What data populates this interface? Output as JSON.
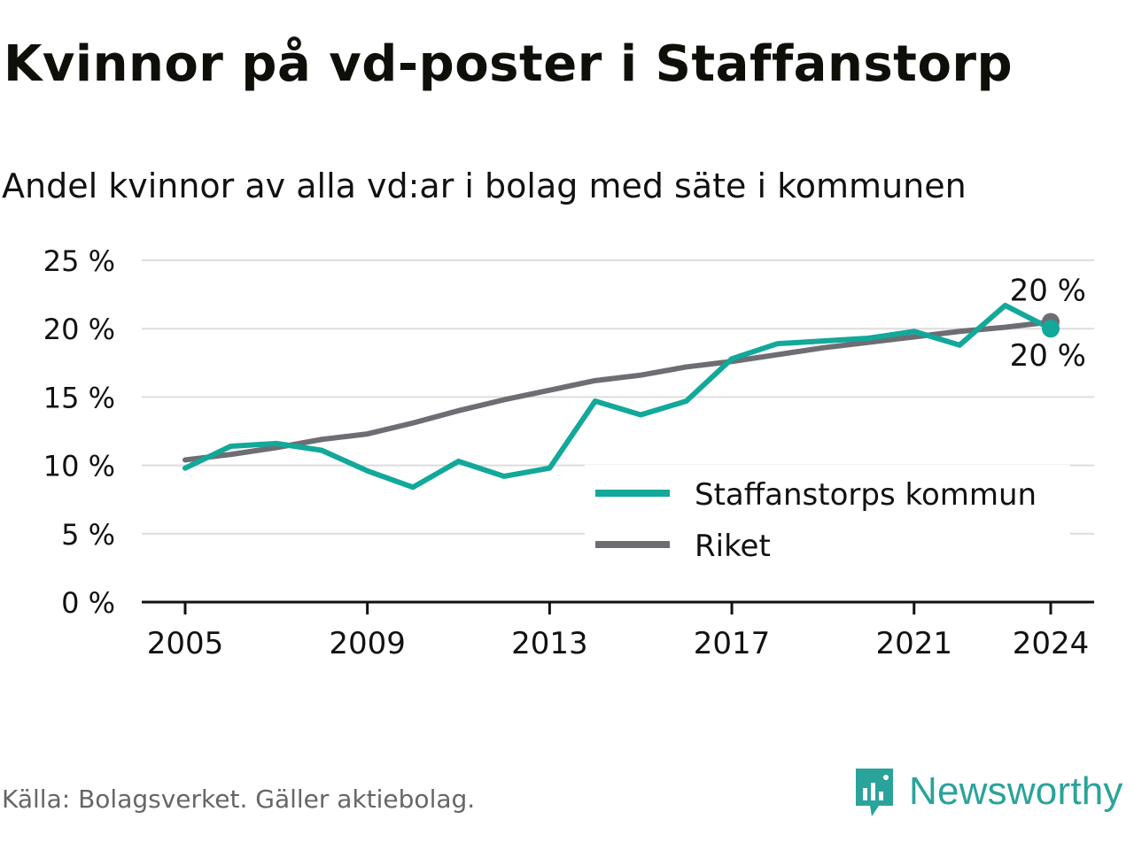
{
  "title": "Kvinnor på vd-poster i Staffanstorp",
  "subtitle": "Andel kvinnor av alla vd:ar i bolag med säte i kommunen",
  "source": "Källa: Bolagsverket. Gäller aktiebolag.",
  "brand": {
    "name": "Newsworthy",
    "icon": "newsworthy-logo-icon"
  },
  "colors": {
    "kommun": "#12a89a",
    "riket": "#6e6d73",
    "grid": "#dddddd",
    "text": "#111111"
  },
  "chart_data": {
    "type": "line",
    "x": [
      2005,
      2006,
      2007,
      2008,
      2009,
      2010,
      2011,
      2012,
      2013,
      2014,
      2015,
      2016,
      2017,
      2018,
      2019,
      2020,
      2021,
      2022,
      2023,
      2024
    ],
    "series": [
      {
        "name": "Staffanstorps kommun",
        "color": "#12a89a",
        "values": [
          9.8,
          11.4,
          11.6,
          11.1,
          9.6,
          8.4,
          10.3,
          9.2,
          9.8,
          14.7,
          13.7,
          14.7,
          17.8,
          18.9,
          19.1,
          19.3,
          19.8,
          18.8,
          21.7,
          20.0
        ]
      },
      {
        "name": "Riket",
        "color": "#6e6d73",
        "values": [
          10.4,
          10.8,
          11.3,
          11.9,
          12.3,
          13.1,
          14.0,
          14.8,
          15.5,
          16.2,
          16.6,
          17.2,
          17.6,
          18.1,
          18.6,
          19.0,
          19.4,
          19.8,
          20.1,
          20.5
        ]
      }
    ],
    "end_labels": [
      "20 %",
      "20 %"
    ],
    "xticks": [
      2005,
      2009,
      2013,
      2017,
      2021,
      2024
    ],
    "xtick_labels": [
      "2005",
      "2009",
      "2013",
      "2017",
      "2021",
      "2024"
    ],
    "yticks": [
      0,
      5,
      10,
      15,
      20,
      25
    ],
    "ytick_labels": [
      "0 %",
      "5 %",
      "10 %",
      "15 %",
      "20 %",
      "25 %"
    ],
    "ylim": [
      0,
      25
    ],
    "xlim": [
      2004,
      2025
    ],
    "grid": true,
    "legend": "inside-right",
    "xlabel": "",
    "ylabel": ""
  }
}
